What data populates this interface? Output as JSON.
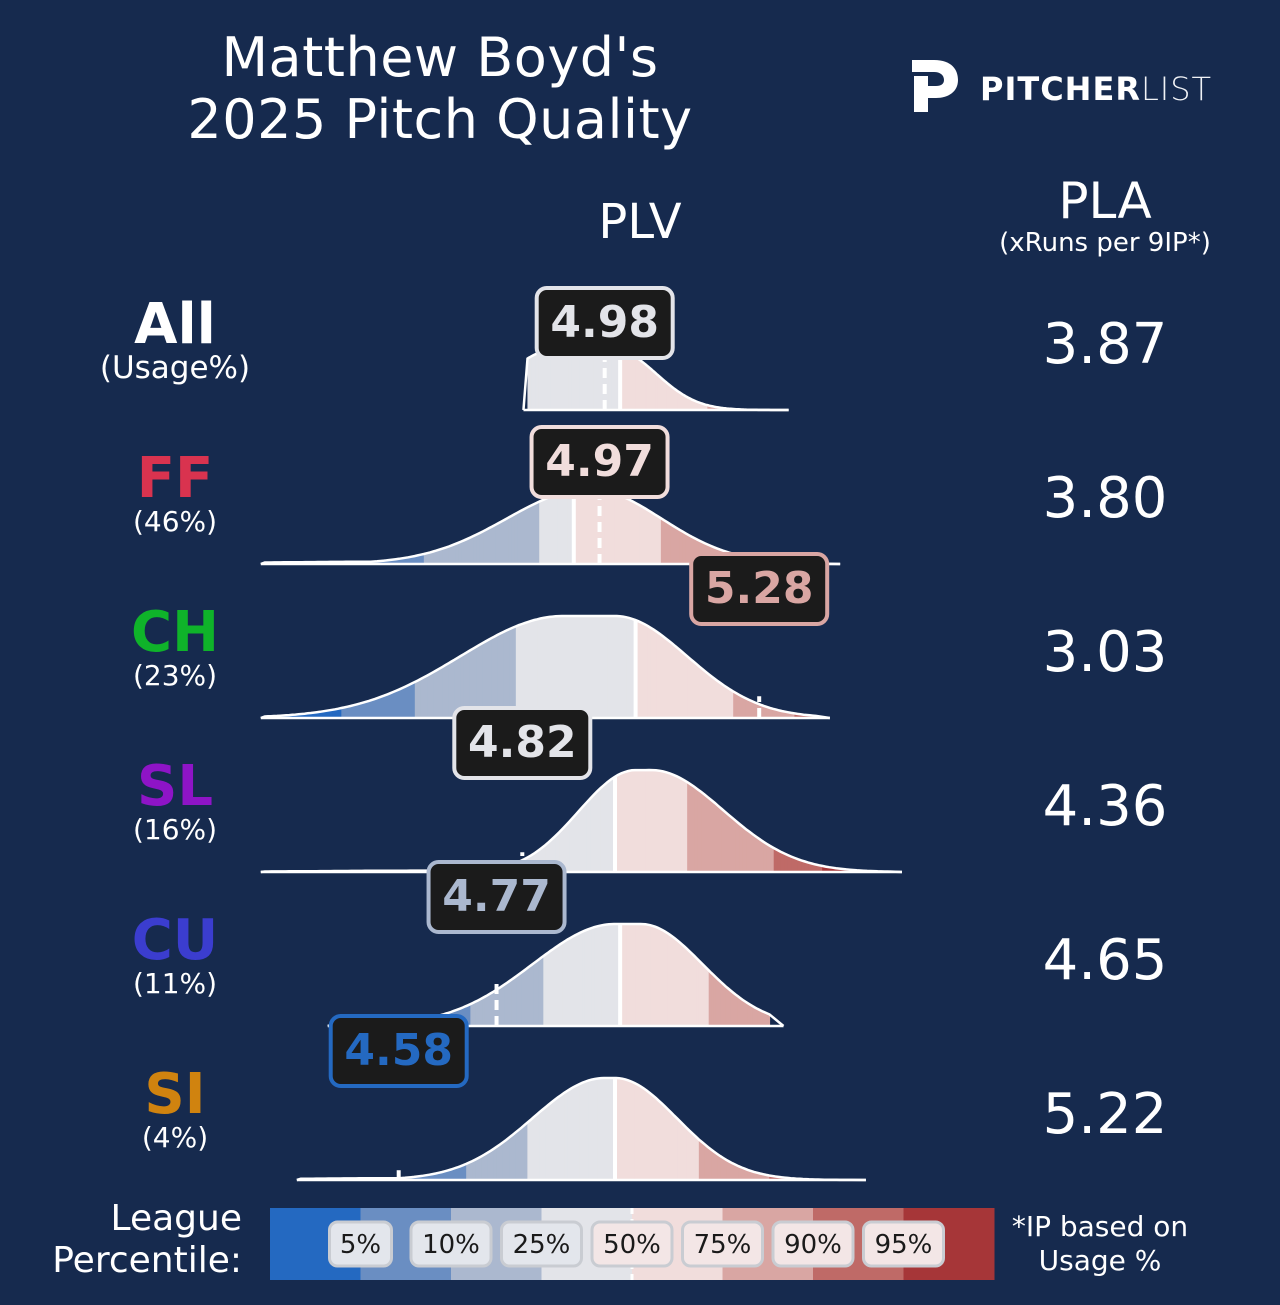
{
  "header": {
    "title_line1": "Matthew Boyd's",
    "title_line2": "2025 Pitch Quality"
  },
  "logo": {
    "icon": "pitcherlist-p-icon",
    "text_bold": "PITCHER",
    "text_light": "LIST"
  },
  "columns": {
    "plv": "PLV",
    "pla": "PLA",
    "pla_sub": "(xRuns per 9IP*)"
  },
  "rows": [
    {
      "label": "All",
      "usage": "(Usage%)",
      "color": "#ffffff",
      "plv": "4.98",
      "pla": "3.87"
    },
    {
      "label": "FF",
      "usage": "(46%)",
      "color": "#d9334f",
      "plv": "4.97",
      "pla": "3.80"
    },
    {
      "label": "CH",
      "usage": "(23%)",
      "color": "#0fb32a",
      "plv": "5.28",
      "pla": "3.03"
    },
    {
      "label": "SL",
      "usage": "(16%)",
      "color": "#8e14c7",
      "plv": "4.82",
      "pla": "4.36"
    },
    {
      "label": "CU",
      "usage": "(11%)",
      "color": "#3b3dcf",
      "plv": "4.77",
      "pla": "4.65"
    },
    {
      "label": "SI",
      "usage": "(4%)",
      "color": "#d0830f",
      "plv": "4.58",
      "pla": "5.22"
    }
  ],
  "legend": {
    "title_line1": "League",
    "title_line2": "Percentile:",
    "percentiles": [
      "5%",
      "10%",
      "25%",
      "50%",
      "75%",
      "90%",
      "95%"
    ]
  },
  "footnote": {
    "line1": "*IP based on",
    "line2": "Usage %"
  },
  "chart_data": {
    "type": "area",
    "title": "",
    "xlabel": "PLV",
    "ylabel": "",
    "series": [
      {
        "name": "All",
        "plv": 4.98,
        "percentile_cuts": [
          4.52,
          4.65,
          4.82,
          5.01,
          5.18,
          5.33,
          5.41
        ]
      },
      {
        "name": "FF",
        "plv": 4.97,
        "percentile_cuts": [
          4.42,
          4.63,
          4.85,
          4.92,
          5.09,
          5.26,
          5.37
        ]
      },
      {
        "name": "CH",
        "plv": 5.28,
        "percentile_cuts": [
          4.47,
          4.61,
          4.81,
          5.04,
          5.23,
          5.35,
          5.44
        ]
      },
      {
        "name": "SL",
        "plv": 4.82,
        "percentile_cuts": [
          4.58,
          4.66,
          4.79,
          5.0,
          5.14,
          5.31,
          5.4
        ]
      },
      {
        "name": "CU",
        "plv": 4.77,
        "percentile_cuts": [
          4.61,
          4.72,
          4.86,
          5.01,
          5.18,
          5.34,
          5.42
        ]
      },
      {
        "name": "SI",
        "plv": 4.58,
        "percentile_cuts": [
          4.59,
          4.71,
          4.83,
          5.0,
          5.16,
          5.3,
          5.4
        ]
      }
    ],
    "colorbar": {
      "colors": [
        "#2469c1",
        "#6a8ec2",
        "#abb8cf",
        "#e3e4e9",
        "#f1dddc",
        "#d9a6a3",
        "#bf6a67",
        "#a63638"
      ],
      "percentiles": [
        "5%",
        "10%",
        "25%",
        "50%",
        "75%",
        "90%",
        "95%"
      ]
    },
    "legend_position": "bottom",
    "grid": false
  }
}
